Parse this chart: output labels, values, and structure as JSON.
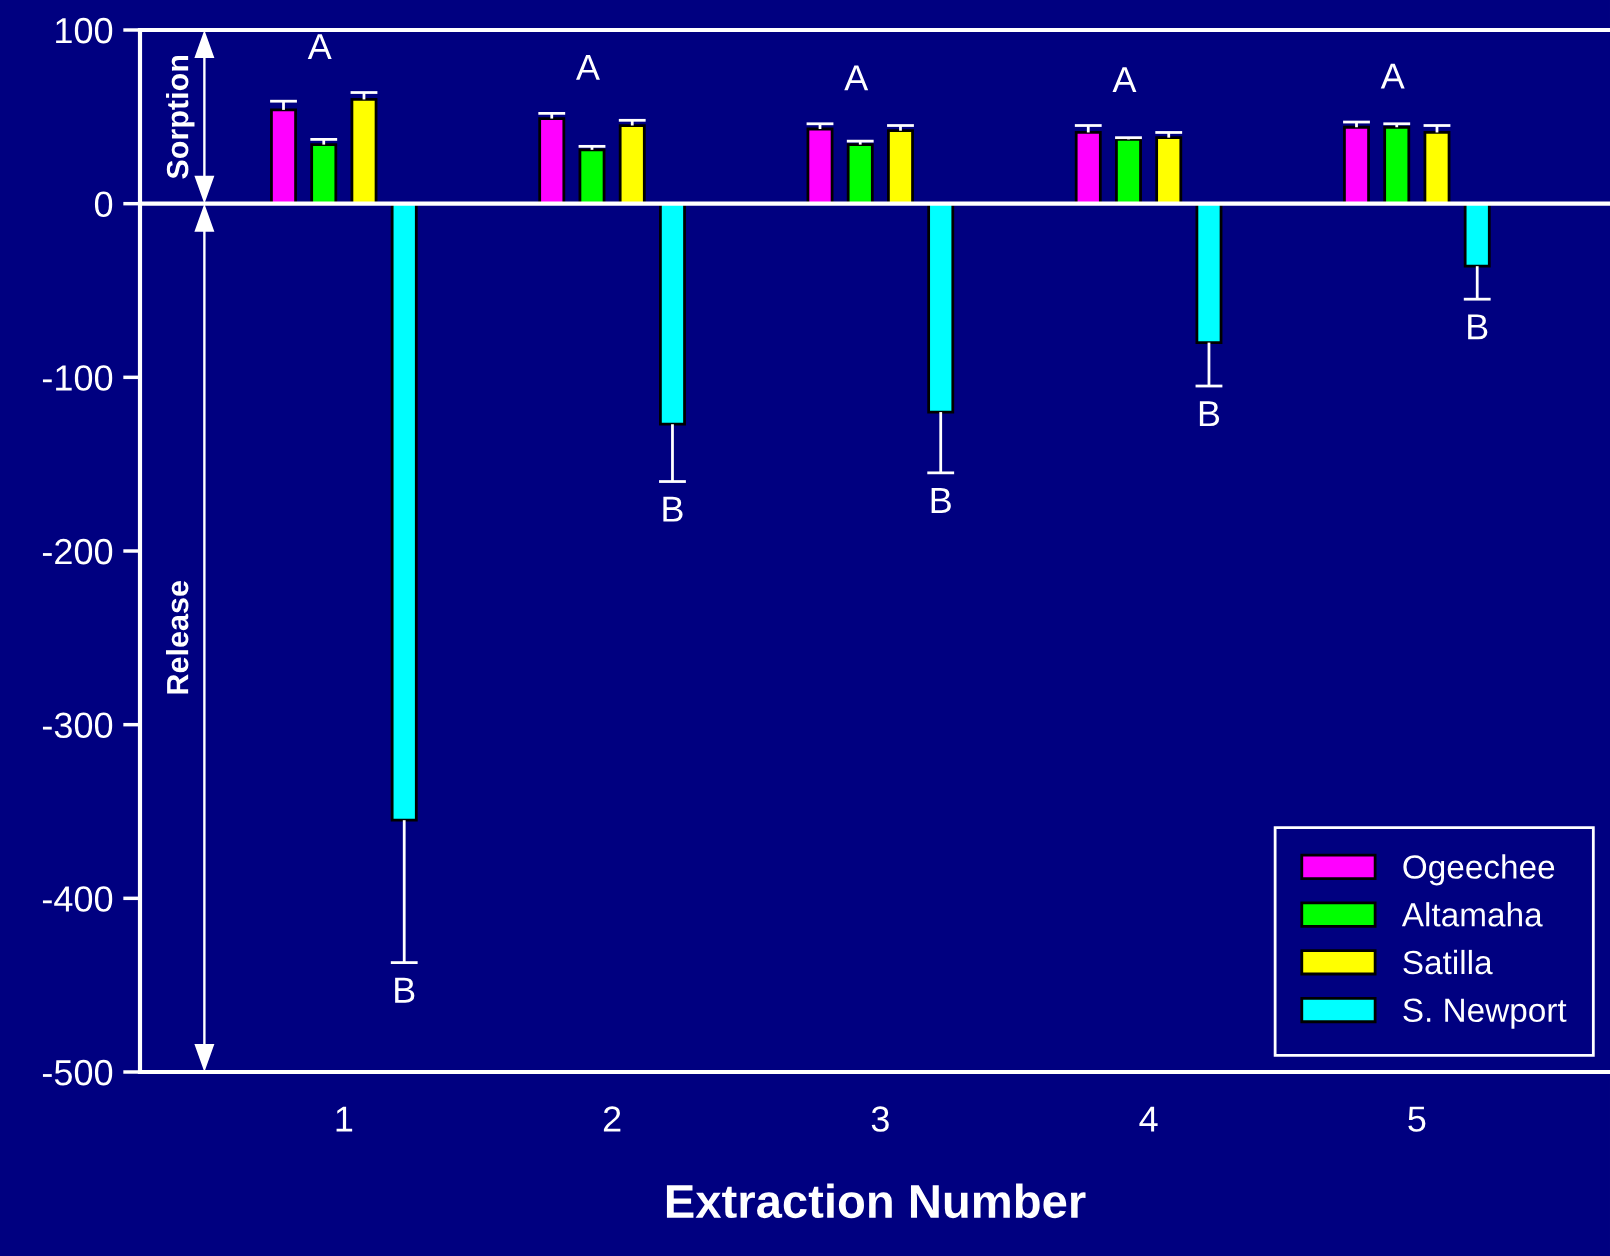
{
  "chart_data": {
    "type": "bar",
    "xlabel": "Extraction Number",
    "categories": [
      "1",
      "2",
      "3",
      "4",
      "5"
    ],
    "series": [
      {
        "name": "Ogeechee",
        "color": "#ff00ff",
        "values": [
          54,
          49,
          43,
          41,
          44
        ],
        "errors": [
          [
            54,
            59
          ],
          [
            49,
            52
          ],
          [
            43,
            46
          ],
          [
            41,
            45
          ],
          [
            44,
            47
          ]
        ]
      },
      {
        "name": "Altamaha",
        "color": "#00ff00",
        "values": [
          34,
          31,
          34,
          37,
          44
        ],
        "errors": [
          [
            34,
            37
          ],
          [
            31,
            33
          ],
          [
            34,
            36
          ],
          [
            37,
            38
          ],
          [
            44,
            46
          ]
        ]
      },
      {
        "name": "Satilla",
        "color": "#ffff00",
        "values": [
          60,
          45,
          42,
          38,
          41
        ],
        "errors": [
          [
            60,
            64
          ],
          [
            45,
            48
          ],
          [
            42,
            45
          ],
          [
            38,
            41
          ],
          [
            41,
            45
          ]
        ]
      },
      {
        "name": "S. Newport",
        "color": "#00ffff",
        "values": [
          -355,
          -127,
          -120,
          -80,
          -36
        ],
        "errors": [
          [
            -437,
            -355
          ],
          [
            -160,
            -127
          ],
          [
            -155,
            -120
          ],
          [
            -105,
            -80
          ],
          [
            -55,
            -36
          ]
        ]
      }
    ],
    "ylim": [
      -500,
      100
    ],
    "yticks": [
      -500,
      -400,
      -300,
      -200,
      -100,
      0,
      100
    ],
    "ref_lines": [
      {
        "axis": "y",
        "value": 0
      }
    ],
    "annotations": [
      "A",
      "A",
      "A",
      "A",
      "A",
      "B",
      "B",
      "B",
      "B",
      "B",
      "Sorption",
      "Release"
    ],
    "legend": "bottom right"
  }
}
